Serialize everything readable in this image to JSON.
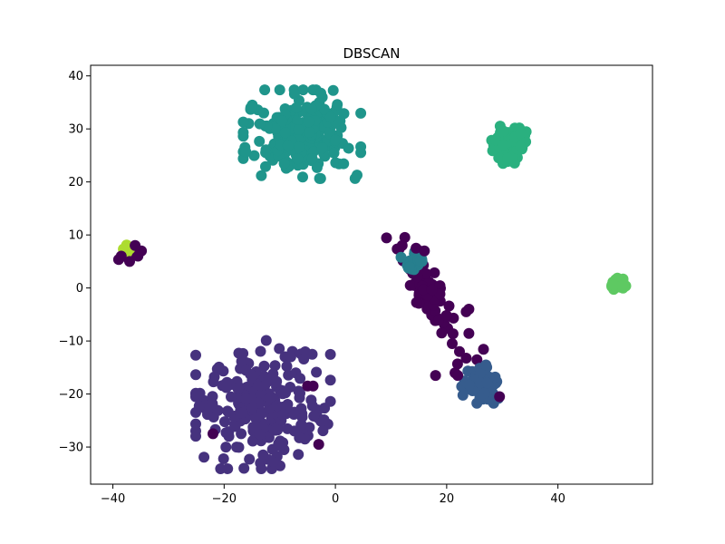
{
  "chart_data": {
    "type": "scatter",
    "title": "DBSCAN",
    "xlabel": "",
    "ylabel": "",
    "xlim": [
      -44,
      57
    ],
    "ylim": [
      -37,
      42
    ],
    "x_ticks": [
      -40,
      -20,
      0,
      20,
      40
    ],
    "y_ticks": [
      -30,
      -20,
      -10,
      0,
      10,
      20,
      30,
      40
    ],
    "grid": false,
    "legend": "none",
    "clusters": [
      {
        "label": -1,
        "color": "#440154",
        "cx": 17,
        "cy": -2,
        "sx": 3.2,
        "sy": 5.5,
        "n": 75
      },
      {
        "label": -1,
        "color": "#440154",
        "cx": -37,
        "cy": 6.5,
        "sx": 1.2,
        "sy": 1.2,
        "n": 10
      },
      {
        "label": 0,
        "color": "#46327e",
        "cx": -13,
        "cy": -22,
        "sx": 5.5,
        "sy": 5.5,
        "n": 230
      },
      {
        "label": 1,
        "color": "#365c8d",
        "cx": 26,
        "cy": -18,
        "sx": 1.5,
        "sy": 1.7,
        "n": 80
      },
      {
        "label": 2,
        "color": "#277f8e",
        "cx": 14,
        "cy": 5,
        "sx": 1.0,
        "sy": 0.9,
        "n": 25
      },
      {
        "label": 3,
        "color": "#1f958b",
        "cx": -6,
        "cy": 29,
        "sx": 4.8,
        "sy": 3.8,
        "n": 230
      },
      {
        "label": 4,
        "color": "#2ab07f",
        "cx": 31.5,
        "cy": 27,
        "sx": 1.6,
        "sy": 1.6,
        "n": 80
      },
      {
        "label": 5,
        "color": "#5ec962",
        "cx": 51,
        "cy": 0.8,
        "sx": 0.6,
        "sy": 0.5,
        "n": 30
      },
      {
        "label": 6,
        "color": "#addc30",
        "cx": -37.5,
        "cy": 7,
        "sx": 0.5,
        "sy": 0.5,
        "n": 6
      }
    ],
    "noise_points": [
      {
        "x": 12,
        "y": 8
      },
      {
        "x": 14.5,
        "y": 7.5
      },
      {
        "x": 16,
        "y": 7
      },
      {
        "x": 18,
        "y": -16.5
      },
      {
        "x": 21.5,
        "y": -16
      },
      {
        "x": 22,
        "y": -16.5
      },
      {
        "x": 29.5,
        "y": -20.5
      },
      {
        "x": 23.5,
        "y": -4.5
      },
      {
        "x": 21,
        "y": -10.5
      },
      {
        "x": 24,
        "y": -4
      },
      {
        "x": -5,
        "y": -18.5
      },
      {
        "x": -4,
        "y": -18.5
      },
      {
        "x": -22,
        "y": -27.5
      },
      {
        "x": -3,
        "y": -29.5
      },
      {
        "x": -36,
        "y": 8
      },
      {
        "x": -38.5,
        "y": 6
      },
      {
        "x": -37,
        "y": 5
      },
      {
        "x": -35.5,
        "y": 6
      }
    ]
  }
}
